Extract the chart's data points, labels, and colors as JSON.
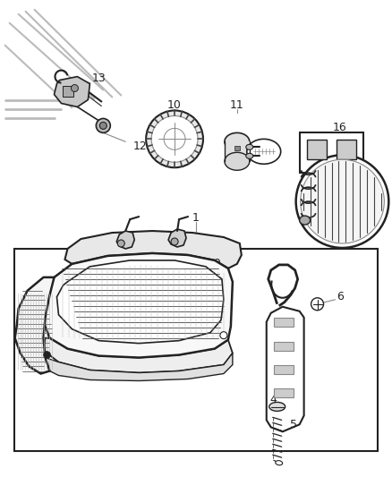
{
  "bg_color": "#ffffff",
  "line_color": "#222222",
  "gray": "#888888",
  "light_gray": "#bbbbbb",
  "dark_gray": "#444444",
  "fig_width": 4.38,
  "fig_height": 5.33,
  "dpi": 100
}
